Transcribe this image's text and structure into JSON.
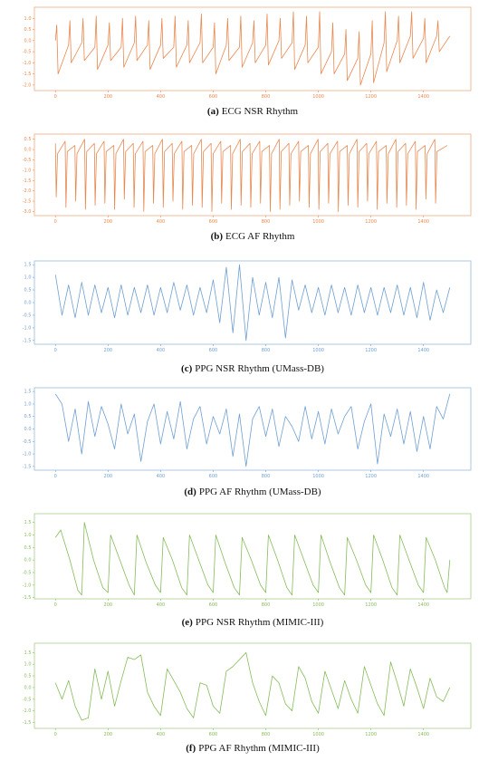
{
  "chart_data": [
    {
      "type": "line",
      "label": "(a)",
      "title": "ECG NSR Rhythm",
      "color": "#e8884f",
      "x": [
        0,
        5,
        10,
        50,
        55,
        60,
        100,
        105,
        110,
        150,
        155,
        160,
        200,
        205,
        210,
        250,
        255,
        260,
        300,
        305,
        310,
        350,
        355,
        360,
        400,
        405,
        410,
        450,
        455,
        460,
        500,
        505,
        510,
        550,
        555,
        560,
        600,
        605,
        610,
        650,
        655,
        660,
        700,
        705,
        710,
        750,
        755,
        760,
        800,
        805,
        810,
        850,
        855,
        860,
        900,
        905,
        910,
        950,
        955,
        960,
        1000,
        1005,
        1010,
        1050,
        1055,
        1060,
        1100,
        1105,
        1110,
        1150,
        1155,
        1160,
        1200,
        1205,
        1210,
        1250,
        1255,
        1260,
        1300,
        1305,
        1310,
        1350,
        1355,
        1360,
        1400,
        1405,
        1410,
        1450,
        1455,
        1460,
        1500
      ],
      "values": [
        0.0,
        0.7,
        -1.5,
        -0.2,
        0.9,
        -1.0,
        -0.1,
        1.0,
        -0.9,
        -0.3,
        1.1,
        -1.3,
        -0.2,
        0.8,
        -0.9,
        -0.3,
        1.0,
        -1.2,
        -0.1,
        1.1,
        -0.9,
        -0.2,
        0.9,
        -1.3,
        -0.2,
        1.0,
        -0.8,
        -0.3,
        1.1,
        -1.2,
        -0.2,
        0.9,
        -1.0,
        -0.1,
        1.2,
        -1.0,
        -0.3,
        0.8,
        -1.5,
        -0.2,
        1.0,
        -0.9,
        -0.3,
        1.1,
        -1.2,
        -0.1,
        0.9,
        -1.0,
        -0.2,
        1.2,
        -1.1,
        0.0,
        1.0,
        -0.8,
        -0.1,
        1.3,
        -1.3,
        -0.2,
        1.1,
        -1.0,
        -0.3,
        1.3,
        -1.5,
        -0.5,
        0.8,
        -1.5,
        -0.6,
        0.5,
        -1.8,
        -0.8,
        0.4,
        -2.0,
        -0.6,
        0.9,
        -1.9,
        -0.1,
        1.3,
        -1.4,
        0.0,
        1.1,
        -1.0,
        0.2,
        1.3,
        -0.8,
        0.1,
        1.0,
        -1.0,
        0.2,
        0.9,
        -0.5,
        0.2
      ],
      "xlim": [
        -80,
        1580
      ],
      "xticks": [
        0,
        200,
        400,
        600,
        800,
        1000,
        1200,
        1400
      ],
      "ylim": [
        -2.25,
        1.5
      ],
      "yticks": [
        {
          "value": 1.0,
          "label": "1.0"
        },
        {
          "value": 0.5,
          "label": "0.5"
        },
        {
          "value": 0.0,
          "label": "0.0"
        },
        {
          "value": -0.5,
          "label": "-0.5"
        },
        {
          "value": -1.0,
          "label": "-1.0"
        },
        {
          "value": -1.5,
          "label": "-1.5"
        },
        {
          "value": -2.0,
          "label": "-2.0"
        }
      ]
    },
    {
      "type": "line",
      "label": "(b)",
      "title": "ECG AF Rhythm",
      "color": "#e8884f",
      "x": [
        0,
        3,
        8,
        37,
        40,
        45,
        74,
        77,
        82,
        111,
        114,
        119,
        148,
        151,
        156,
        185,
        188,
        193,
        222,
        225,
        230,
        259,
        262,
        267,
        296,
        299,
        304,
        333,
        336,
        341,
        370,
        373,
        378,
        407,
        410,
        415,
        444,
        447,
        452,
        481,
        484,
        489,
        518,
        521,
        526,
        555,
        558,
        563,
        592,
        595,
        600,
        629,
        632,
        637,
        666,
        669,
        674,
        703,
        706,
        711,
        740,
        743,
        748,
        777,
        780,
        785,
        814,
        817,
        822,
        851,
        854,
        859,
        888,
        891,
        896,
        925,
        928,
        933,
        962,
        965,
        970,
        999,
        1002,
        1007,
        1036,
        1039,
        1044,
        1073,
        1076,
        1081,
        1110,
        1113,
        1118,
        1147,
        1150,
        1155,
        1184,
        1187,
        1192,
        1221,
        1224,
        1229,
        1258,
        1261,
        1266,
        1295,
        1298,
        1303,
        1332,
        1335,
        1340,
        1369,
        1372,
        1377,
        1406,
        1409,
        1414,
        1443,
        1446,
        1451,
        1490
      ],
      "values": [
        0.3,
        -2.3,
        -0.2,
        0.4,
        -2.8,
        -0.1,
        0.2,
        -2.5,
        -0.2,
        0.5,
        -2.9,
        -0.1,
        0.3,
        -2.7,
        -0.2,
        0.4,
        -2.6,
        -0.1,
        0.2,
        -2.9,
        -0.2,
        0.5,
        -2.4,
        -0.1,
        0.3,
        -2.8,
        -0.2,
        0.4,
        -3.0,
        -0.1,
        0.2,
        -2.6,
        -0.2,
        0.5,
        -2.8,
        -0.1,
        0.3,
        -2.5,
        -0.2,
        0.4,
        -2.9,
        -0.1,
        0.2,
        -2.7,
        -0.2,
        0.5,
        -2.8,
        -0.1,
        0.3,
        -3.0,
        -0.2,
        0.4,
        -2.6,
        -0.1,
        0.2,
        -2.9,
        -0.2,
        0.5,
        -2.7,
        -0.1,
        0.3,
        -2.8,
        -0.2,
        0.4,
        -2.6,
        -0.1,
        0.2,
        -3.0,
        -0.2,
        0.5,
        -2.9,
        -0.1,
        0.3,
        -2.7,
        -0.2,
        0.4,
        -2.5,
        -0.1,
        0.2,
        -2.8,
        -0.2,
        0.5,
        -2.9,
        -0.1,
        0.3,
        -2.6,
        -0.2,
        0.4,
        -3.0,
        -0.1,
        0.2,
        -2.7,
        -0.2,
        0.5,
        -2.8,
        -0.1,
        0.3,
        -2.5,
        -0.2,
        0.4,
        -2.9,
        -0.1,
        0.2,
        -2.6,
        -0.2,
        0.5,
        -2.8,
        -0.1,
        0.3,
        -2.7,
        -0.2,
        0.4,
        -2.9,
        -0.1,
        0.2,
        -2.4,
        -0.2,
        0.5,
        -2.6,
        -0.1,
        0.2
      ],
      "xlim": [
        -80,
        1580
      ],
      "xticks": [
        0,
        200,
        400,
        600,
        800,
        1000,
        1200,
        1400
      ],
      "ylim": [
        -3.2,
        0.75
      ],
      "yticks": [
        {
          "value": 0.5,
          "label": "0.5"
        },
        {
          "value": 0.0,
          "label": "0.0"
        },
        {
          "value": -0.5,
          "label": "-0.5"
        },
        {
          "value": -1.0,
          "label": "-1.0"
        },
        {
          "value": -1.5,
          "label": "-1.5"
        },
        {
          "value": -2.0,
          "label": "-2.0"
        },
        {
          "value": -2.5,
          "label": "-2.5"
        },
        {
          "value": -3.0,
          "label": "-3.0"
        }
      ]
    },
    {
      "type": "line",
      "label": "(c)",
      "title": "PPG NSR Rhythm (UMass-DB)",
      "color": "#6f9fd2",
      "x": [
        0,
        25,
        50,
        75,
        100,
        125,
        150,
        175,
        200,
        225,
        250,
        275,
        300,
        325,
        350,
        375,
        400,
        425,
        450,
        475,
        500,
        525,
        550,
        575,
        600,
        625,
        650,
        675,
        700,
        725,
        750,
        775,
        800,
        825,
        850,
        875,
        900,
        925,
        950,
        975,
        1000,
        1025,
        1050,
        1075,
        1100,
        1125,
        1150,
        1175,
        1200,
        1225,
        1250,
        1275,
        1300,
        1325,
        1350,
        1375,
        1400,
        1425,
        1450,
        1475,
        1500
      ],
      "values": [
        1.1,
        -0.5,
        0.7,
        -0.6,
        0.8,
        -0.5,
        0.7,
        -0.4,
        0.6,
        -0.6,
        0.7,
        -0.5,
        0.6,
        -0.4,
        0.7,
        -0.5,
        0.6,
        -0.4,
        0.8,
        -0.3,
        0.7,
        -0.5,
        0.6,
        -0.4,
        0.9,
        -0.8,
        1.4,
        -1.2,
        1.5,
        -1.5,
        1.0,
        -0.5,
        0.8,
        -0.6,
        1.0,
        -1.4,
        0.9,
        -0.3,
        0.7,
        -0.4,
        0.6,
        -0.5,
        0.7,
        -0.4,
        0.6,
        -0.5,
        0.7,
        -0.4,
        0.6,
        -0.5,
        0.6,
        -0.4,
        0.7,
        -0.5,
        0.6,
        -0.6,
        0.8,
        -0.7,
        0.5,
        -0.4,
        0.6
      ],
      "xlim": [
        -80,
        1580
      ],
      "xticks": [
        0,
        200,
        400,
        600,
        800,
        1000,
        1200,
        1400
      ],
      "ylim": [
        -1.65,
        1.65
      ],
      "yticks": [
        1.5,
        {
          "value": 1.0,
          "label": "1.0"
        },
        0.5,
        {
          "value": 0.0,
          "label": "0.0"
        },
        -0.5,
        {
          "value": -1.0,
          "label": "-1.0"
        },
        -1.5
      ]
    },
    {
      "type": "line",
      "label": "(d)",
      "title": "PPG AF Rhythm (UMass-DB)",
      "color": "#6f9fd2",
      "x": [
        0,
        25,
        50,
        75,
        100,
        125,
        150,
        175,
        200,
        225,
        250,
        275,
        300,
        325,
        350,
        375,
        400,
        425,
        450,
        475,
        500,
        525,
        550,
        575,
        600,
        625,
        650,
        675,
        700,
        725,
        750,
        775,
        800,
        825,
        850,
        875,
        900,
        925,
        950,
        975,
        1000,
        1025,
        1050,
        1075,
        1100,
        1125,
        1150,
        1175,
        1200,
        1225,
        1250,
        1275,
        1300,
        1325,
        1350,
        1375,
        1400,
        1425,
        1450,
        1475,
        1500
      ],
      "values": [
        1.4,
        1.0,
        -0.5,
        0.8,
        -1.0,
        1.1,
        -0.3,
        0.9,
        0.2,
        -0.8,
        1.0,
        -0.2,
        0.6,
        -1.3,
        0.3,
        1.0,
        -0.6,
        0.7,
        -0.4,
        1.1,
        -0.8,
        0.4,
        0.9,
        -0.6,
        0.5,
        -0.2,
        0.8,
        -1.1,
        0.6,
        -1.5,
        0.4,
        0.9,
        -0.3,
        0.8,
        -0.7,
        0.5,
        0.1,
        -0.5,
        0.9,
        -0.4,
        0.7,
        -0.6,
        0.8,
        -0.2,
        0.5,
        0.9,
        -0.8,
        0.3,
        1.0,
        -1.4,
        0.6,
        -0.3,
        0.8,
        -0.6,
        0.7,
        -0.9,
        0.5,
        -0.8,
        0.9,
        0.4,
        1.4
      ],
      "xlim": [
        -80,
        1580
      ],
      "xticks": [
        0,
        200,
        400,
        600,
        800,
        1000,
        1200,
        1400
      ],
      "ylim": [
        -1.65,
        1.65
      ],
      "yticks": [
        1.5,
        {
          "value": 1.0,
          "label": "1.0"
        },
        0.5,
        {
          "value": 0.0,
          "label": "0.0"
        },
        -0.5,
        {
          "value": -1.0,
          "label": "-1.0"
        },
        -1.5
      ]
    },
    {
      "type": "line",
      "label": "(e)",
      "title": "PPG NSR Rhythm (MIMIC-III)",
      "color": "#86bb5a",
      "x": [
        0,
        20,
        55,
        85,
        100,
        110,
        145,
        180,
        200,
        210,
        245,
        280,
        300,
        310,
        345,
        380,
        400,
        410,
        445,
        480,
        500,
        510,
        545,
        580,
        600,
        610,
        645,
        680,
        700,
        710,
        745,
        780,
        800,
        810,
        845,
        880,
        900,
        910,
        945,
        980,
        1000,
        1010,
        1045,
        1080,
        1100,
        1110,
        1145,
        1180,
        1200,
        1210,
        1245,
        1280,
        1300,
        1310,
        1345,
        1380,
        1400,
        1410,
        1445,
        1480,
        1490,
        1500
      ],
      "values": [
        0.9,
        1.2,
        0.0,
        -1.2,
        -1.4,
        1.5,
        0.0,
        -1.1,
        -1.3,
        1.0,
        0.0,
        -1.0,
        -1.4,
        1.0,
        -0.1,
        -1.0,
        -1.3,
        0.9,
        0.0,
        -1.1,
        -1.4,
        1.0,
        0.0,
        -1.0,
        -1.3,
        1.0,
        -0.1,
        -1.1,
        -1.4,
        0.9,
        0.0,
        -1.0,
        -1.3,
        1.0,
        0.0,
        -1.1,
        -1.4,
        1.0,
        0.0,
        -1.0,
        -1.3,
        1.0,
        -0.1,
        -1.1,
        -1.4,
        0.9,
        0.0,
        -1.0,
        -1.3,
        1.0,
        0.0,
        -1.1,
        -1.4,
        1.0,
        0.0,
        -1.0,
        -1.3,
        0.9,
        0.0,
        -1.1,
        -1.3,
        0.0
      ],
      "xlim": [
        -80,
        1580
      ],
      "xticks": [
        0,
        200,
        400,
        600,
        800,
        1000,
        1200,
        1400
      ],
      "ylim": [
        -1.55,
        1.85
      ],
      "yticks": [
        1.5,
        {
          "value": 1.0,
          "label": "1.0"
        },
        0.5,
        {
          "value": 0.0,
          "label": "0.0"
        },
        -0.5,
        {
          "value": -1.0,
          "label": "-1.0"
        },
        -1.5
      ]
    },
    {
      "type": "line",
      "label": "(f)",
      "title": "PPG AF Rhythm (MIMIC-III)",
      "color": "#86bb5a",
      "x": [
        0,
        25,
        50,
        75,
        100,
        125,
        150,
        175,
        200,
        225,
        250,
        275,
        300,
        325,
        350,
        375,
        400,
        425,
        450,
        475,
        500,
        525,
        550,
        575,
        600,
        625,
        650,
        675,
        700,
        725,
        750,
        775,
        800,
        825,
        850,
        875,
        900,
        925,
        950,
        975,
        1000,
        1025,
        1050,
        1075,
        1100,
        1125,
        1150,
        1175,
        1200,
        1225,
        1250,
        1275,
        1300,
        1325,
        1350,
        1375,
        1400,
        1425,
        1450,
        1475,
        1500
      ],
      "values": [
        0.2,
        -0.5,
        0.3,
        -0.8,
        -1.4,
        -1.3,
        0.8,
        -0.5,
        0.7,
        -0.8,
        0.3,
        1.3,
        1.2,
        1.4,
        -0.2,
        -0.8,
        -1.2,
        0.8,
        0.3,
        -0.2,
        -0.9,
        -1.3,
        0.2,
        0.1,
        -0.8,
        -1.1,
        0.7,
        0.9,
        1.2,
        1.5,
        0.2,
        -0.6,
        -1.2,
        0.5,
        0.2,
        -0.7,
        -1.0,
        0.9,
        0.4,
        -0.6,
        -1.1,
        0.7,
        -0.1,
        -0.9,
        0.3,
        -0.5,
        -1.1,
        0.9,
        0.1,
        -0.7,
        -1.2,
        1.1,
        0.2,
        -0.8,
        0.8,
        0.0,
        -0.9,
        0.4,
        -0.4,
        -0.6,
        0.0
      ],
      "xlim": [
        -80,
        1580
      ],
      "xticks": [
        0,
        200,
        400,
        600,
        800,
        1000,
        1200,
        1400
      ],
      "ylim": [
        -1.75,
        1.9
      ],
      "yticks": [
        1.5,
        {
          "value": 1.0,
          "label": "1.0"
        },
        0.5,
        {
          "value": 0.0,
          "label": "0.0"
        },
        -0.5,
        {
          "value": -1.0,
          "label": "-1.0"
        },
        -1.5
      ]
    }
  ]
}
